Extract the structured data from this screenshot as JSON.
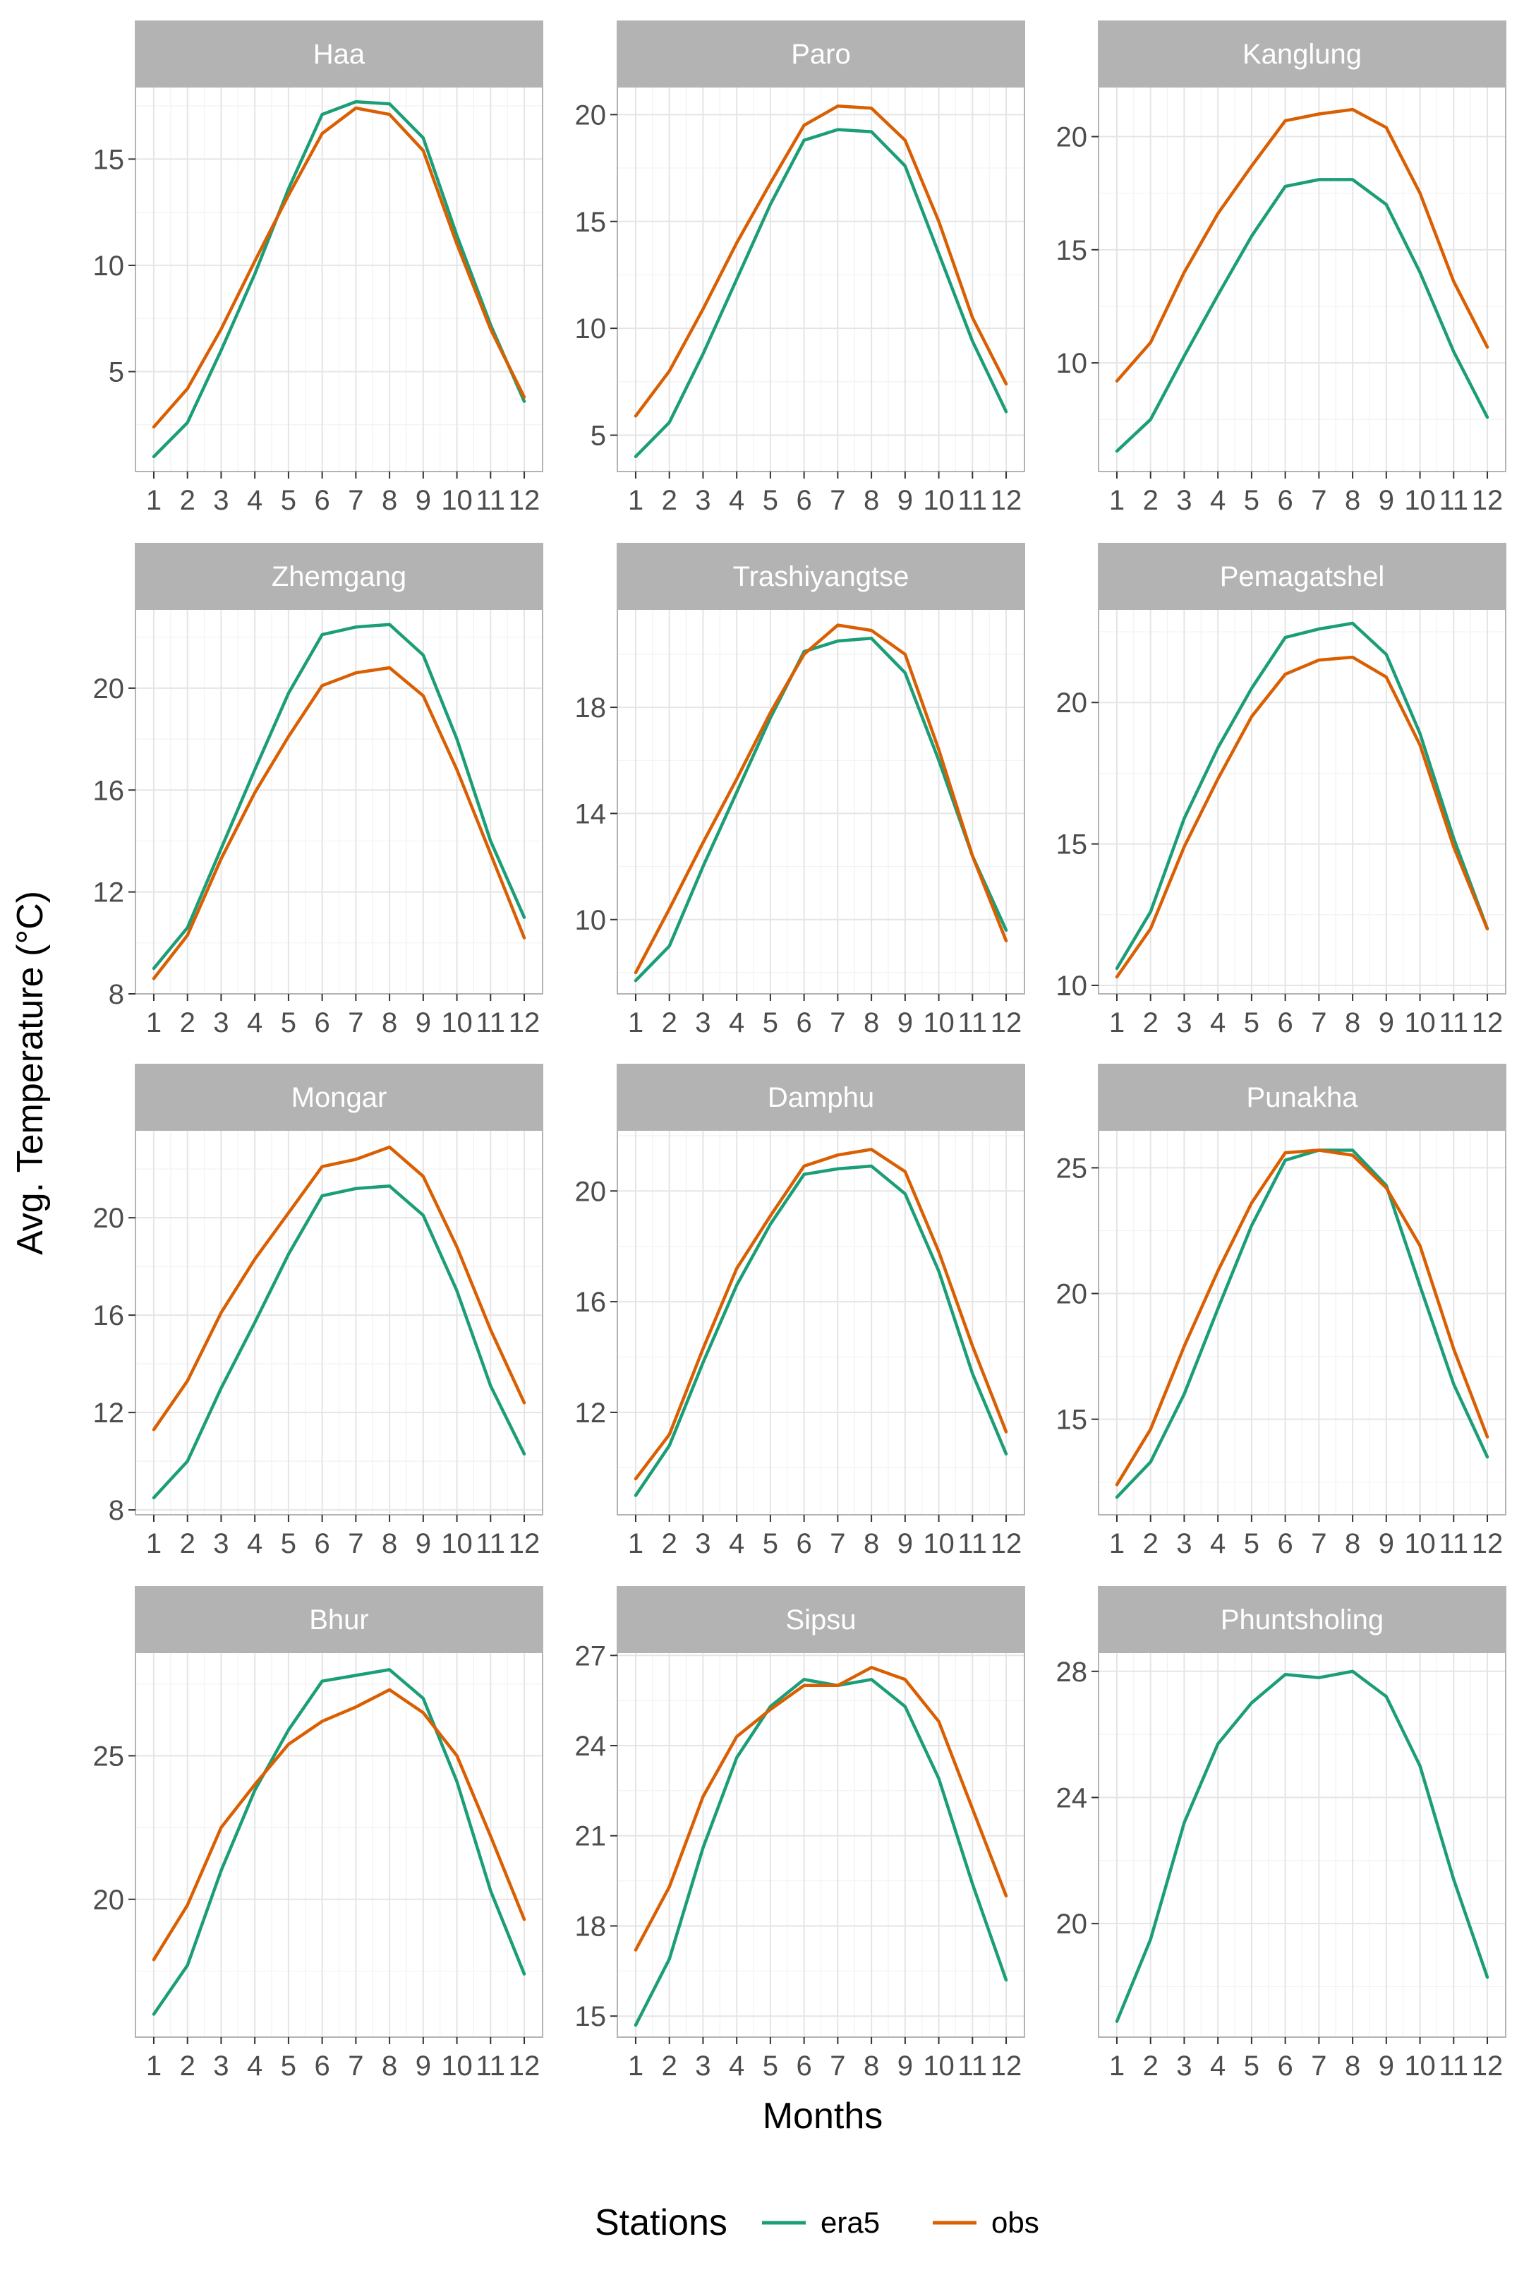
{
  "ylabel": "Avg. Temperature (°C)",
  "xlabel": "Months",
  "legend": {
    "title": "Stations",
    "position": "bottom",
    "items": [
      {
        "name": "era5",
        "color": "#1b9e77"
      },
      {
        "name": "obs",
        "color": "#d95f02"
      }
    ]
  },
  "colors": {
    "era5": "#1b9e77",
    "obs": "#d95f02",
    "strip": "#b3b3b3",
    "grid": "#e5e5e5"
  },
  "chart_data": [
    {
      "type": "line",
      "title": "Haa",
      "x": [
        1,
        2,
        3,
        4,
        5,
        6,
        7,
        8,
        9,
        10,
        11,
        12
      ],
      "ylim": [
        0.3,
        18.4
      ],
      "yticks": [
        5,
        10,
        15
      ],
      "grid": true,
      "series": [
        {
          "name": "era5",
          "values": [
            1.0,
            2.6,
            6.0,
            9.6,
            13.6,
            17.1,
            17.7,
            17.6,
            16.0,
            11.4,
            7.2,
            3.6
          ]
        },
        {
          "name": "obs",
          "values": [
            2.4,
            4.2,
            7.0,
            10.2,
            13.3,
            16.2,
            17.4,
            17.1,
            15.4,
            11.0,
            7.0,
            3.8
          ]
        }
      ]
    },
    {
      "type": "line",
      "title": "Paro",
      "x": [
        1,
        2,
        3,
        4,
        5,
        6,
        7,
        8,
        9,
        10,
        11,
        12
      ],
      "ylim": [
        3.3,
        21.3
      ],
      "yticks": [
        5,
        10,
        15,
        20
      ],
      "grid": true,
      "series": [
        {
          "name": "era5",
          "values": [
            4.0,
            5.6,
            8.8,
            12.3,
            15.8,
            18.8,
            19.3,
            19.2,
            17.6,
            13.5,
            9.4,
            6.1
          ]
        },
        {
          "name": "obs",
          "values": [
            5.9,
            8.0,
            10.9,
            14.0,
            16.8,
            19.5,
            20.4,
            20.3,
            18.8,
            15.0,
            10.5,
            7.4
          ]
        }
      ]
    },
    {
      "type": "line",
      "title": "Kanglung",
      "x": [
        1,
        2,
        3,
        4,
        5,
        6,
        7,
        8,
        9,
        10,
        11,
        12
      ],
      "ylim": [
        5.2,
        22.2
      ],
      "yticks": [
        10,
        15,
        20
      ],
      "grid": true,
      "series": [
        {
          "name": "era5",
          "values": [
            6.1,
            7.5,
            10.3,
            13.0,
            15.6,
            17.8,
            18.1,
            18.1,
            17.0,
            14.0,
            10.5,
            7.6
          ]
        },
        {
          "name": "obs",
          "values": [
            9.2,
            10.9,
            14.0,
            16.6,
            18.7,
            20.7,
            21.0,
            21.2,
            20.4,
            17.5,
            13.6,
            10.7
          ]
        }
      ]
    },
    {
      "type": "line",
      "title": "Zhemgang",
      "x": [
        1,
        2,
        3,
        4,
        5,
        6,
        7,
        8,
        9,
        10,
        11,
        12
      ],
      "ylim": [
        8.0,
        23.1
      ],
      "yticks": [
        8,
        12,
        16,
        20
      ],
      "grid": true,
      "series": [
        {
          "name": "era5",
          "values": [
            9.0,
            10.6,
            13.7,
            16.8,
            19.8,
            22.1,
            22.4,
            22.5,
            21.3,
            18.0,
            14.0,
            11.0
          ]
        },
        {
          "name": "obs",
          "values": [
            8.6,
            10.3,
            13.3,
            15.9,
            18.1,
            20.1,
            20.6,
            20.8,
            19.7,
            16.8,
            13.5,
            10.2
          ]
        }
      ]
    },
    {
      "type": "line",
      "title": "Trashiyangtse",
      "x": [
        1,
        2,
        3,
        4,
        5,
        6,
        7,
        8,
        9,
        10,
        11,
        12
      ],
      "ylim": [
        7.2,
        21.7
      ],
      "yticks": [
        10,
        14,
        18
      ],
      "grid": true,
      "series": [
        {
          "name": "era5",
          "values": [
            7.7,
            9.0,
            12.0,
            14.8,
            17.6,
            20.1,
            20.5,
            20.6,
            19.3,
            16.0,
            12.4,
            9.6
          ]
        },
        {
          "name": "obs",
          "values": [
            8.0,
            10.4,
            12.9,
            15.3,
            17.8,
            20.0,
            21.1,
            20.9,
            20.0,
            16.4,
            12.4,
            9.2
          ]
        }
      ]
    },
    {
      "type": "line",
      "title": "Pemagatshel",
      "x": [
        1,
        2,
        3,
        4,
        5,
        6,
        7,
        8,
        9,
        10,
        11,
        12
      ],
      "ylim": [
        9.7,
        23.3
      ],
      "yticks": [
        10,
        15,
        20
      ],
      "grid": true,
      "series": [
        {
          "name": "era5",
          "values": [
            10.6,
            12.6,
            15.9,
            18.4,
            20.5,
            22.3,
            22.6,
            22.8,
            21.7,
            18.9,
            15.2,
            12.0
          ]
        },
        {
          "name": "obs",
          "values": [
            10.3,
            12.0,
            14.9,
            17.3,
            19.5,
            21.0,
            21.5,
            21.6,
            20.9,
            18.5,
            14.9,
            12.0
          ]
        }
      ]
    },
    {
      "type": "line",
      "title": "Mongar",
      "x": [
        1,
        2,
        3,
        4,
        5,
        6,
        7,
        8,
        9,
        10,
        11,
        12
      ],
      "ylim": [
        7.8,
        23.6
      ],
      "yticks": [
        8,
        12,
        16,
        20
      ],
      "grid": true,
      "series": [
        {
          "name": "era5",
          "values": [
            8.5,
            10.0,
            13.0,
            15.7,
            18.5,
            20.9,
            21.2,
            21.3,
            20.1,
            17.0,
            13.1,
            10.3
          ]
        },
        {
          "name": "obs",
          "values": [
            11.3,
            13.3,
            16.1,
            18.3,
            20.2,
            22.1,
            22.4,
            22.9,
            21.7,
            18.8,
            15.4,
            12.4
          ]
        }
      ]
    },
    {
      "type": "line",
      "title": "Damphu",
      "x": [
        1,
        2,
        3,
        4,
        5,
        6,
        7,
        8,
        9,
        10,
        11,
        12
      ],
      "ylim": [
        8.3,
        22.2
      ],
      "yticks": [
        12,
        16,
        20
      ],
      "grid": true,
      "series": [
        {
          "name": "era5",
          "values": [
            9.0,
            10.8,
            13.8,
            16.6,
            18.8,
            20.6,
            20.8,
            20.9,
            19.9,
            17.1,
            13.4,
            10.5
          ]
        },
        {
          "name": "obs",
          "values": [
            9.6,
            11.2,
            14.3,
            17.2,
            19.1,
            20.9,
            21.3,
            21.5,
            20.7,
            17.8,
            14.4,
            11.3
          ]
        }
      ]
    },
    {
      "type": "line",
      "title": "Punakha",
      "x": [
        1,
        2,
        3,
        4,
        5,
        6,
        7,
        8,
        9,
        10,
        11,
        12
      ],
      "ylim": [
        11.2,
        26.5
      ],
      "yticks": [
        15,
        20,
        25
      ],
      "grid": true,
      "series": [
        {
          "name": "era5",
          "values": [
            11.9,
            13.3,
            16.0,
            19.4,
            22.7,
            25.3,
            25.7,
            25.7,
            24.3,
            20.3,
            16.4,
            13.5
          ]
        },
        {
          "name": "obs",
          "values": [
            12.4,
            14.6,
            17.9,
            20.9,
            23.6,
            25.6,
            25.7,
            25.5,
            24.2,
            21.9,
            17.8,
            14.3
          ]
        }
      ]
    },
    {
      "type": "line",
      "title": "Bhur",
      "x": [
        1,
        2,
        3,
        4,
        5,
        6,
        7,
        8,
        9,
        10,
        11,
        12
      ],
      "ylim": [
        15.2,
        28.6
      ],
      "yticks": [
        20,
        25
      ],
      "grid": true,
      "series": [
        {
          "name": "era5",
          "values": [
            16.0,
            17.7,
            21.0,
            23.8,
            25.9,
            27.6,
            27.8,
            28.0,
            27.0,
            24.1,
            20.3,
            17.4
          ]
        },
        {
          "name": "obs",
          "values": [
            17.9,
            19.8,
            22.5,
            24.0,
            25.4,
            26.2,
            26.7,
            27.3,
            26.5,
            25.0,
            22.2,
            19.3
          ]
        }
      ]
    },
    {
      "type": "line",
      "title": "Sipsu",
      "x": [
        1,
        2,
        3,
        4,
        5,
        6,
        7,
        8,
        9,
        10,
        11,
        12
      ],
      "ylim": [
        14.3,
        27.1
      ],
      "yticks": [
        15,
        18,
        21,
        24,
        27
      ],
      "grid": true,
      "series": [
        {
          "name": "era5",
          "values": [
            14.7,
            16.9,
            20.6,
            23.6,
            25.3,
            26.2,
            26.0,
            26.2,
            25.3,
            22.9,
            19.4,
            16.2
          ]
        },
        {
          "name": "obs",
          "values": [
            17.2,
            19.3,
            22.3,
            24.3,
            25.2,
            26.0,
            26.0,
            26.6,
            26.2,
            24.8,
            21.9,
            19.0
          ]
        }
      ]
    },
    {
      "type": "line",
      "title": "Phuntsholing",
      "x": [
        1,
        2,
        3,
        4,
        5,
        6,
        7,
        8,
        9,
        10,
        11,
        12
      ],
      "ylim": [
        16.4,
        28.6
      ],
      "yticks": [
        20,
        24,
        28
      ],
      "grid": true,
      "series": [
        {
          "name": "era5",
          "values": [
            16.9,
            19.5,
            23.2,
            25.7,
            27.0,
            27.9,
            27.8,
            28.0,
            27.2,
            25.0,
            21.4,
            18.3
          ]
        }
      ]
    }
  ]
}
